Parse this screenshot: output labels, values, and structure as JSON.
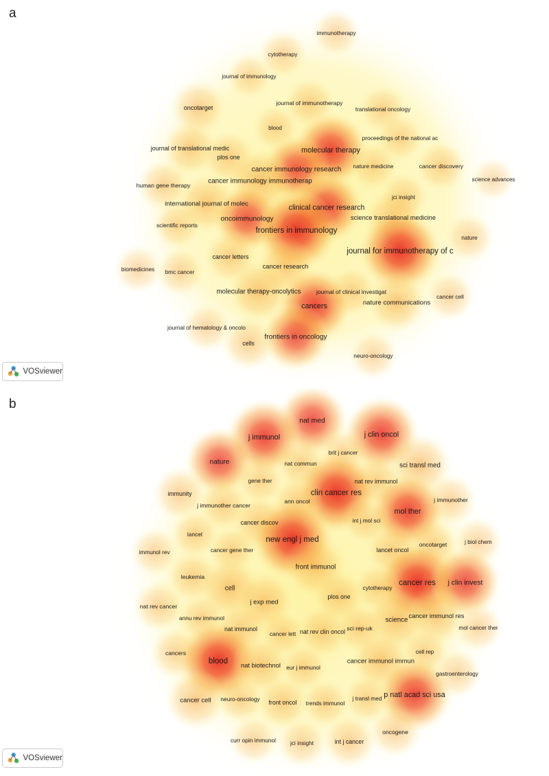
{
  "panels": [
    {
      "letter": "a"
    },
    {
      "letter": "b"
    }
  ],
  "badge": {
    "label": "VOSviewer",
    "icon": "vosviewer-logo-icon"
  },
  "colors": {
    "hot": "#e8221c",
    "mid": "#f7a13a",
    "cool": "#fdf3a0",
    "text": "#1a1a1a"
  },
  "chart_data": [
    {
      "type": "heatmap",
      "subtype": "density-visualization",
      "title": "",
      "items": [
        {
          "label": "immunotherapy",
          "weight": 0.3
        },
        {
          "label": "cytotherapy",
          "weight": 0.3
        },
        {
          "label": "journal of immunology",
          "weight": 0.25
        },
        {
          "label": "oncotarget",
          "weight": 0.45
        },
        {
          "label": "journal of immunotherapy",
          "weight": 0.35
        },
        {
          "label": "translational oncology",
          "weight": 0.3
        },
        {
          "label": "blood",
          "weight": 0.25
        },
        {
          "label": "proceedings of the national ac",
          "weight": 0.3
        },
        {
          "label": "journal of translational medic",
          "weight": 0.45
        },
        {
          "label": "molecular therapy",
          "weight": 0.85
        },
        {
          "label": "plos one",
          "weight": 0.4
        },
        {
          "label": "cancer immunology research",
          "weight": 0.7
        },
        {
          "label": "nature medicine",
          "weight": 0.3
        },
        {
          "label": "cancer discovery",
          "weight": 0.35
        },
        {
          "label": "science advances",
          "weight": 0.2
        },
        {
          "label": "human gene therapy",
          "weight": 0.35
        },
        {
          "label": "cancer immunology immunotherap",
          "weight": 0.65
        },
        {
          "label": "jci insight",
          "weight": 0.3
        },
        {
          "label": "international journal of molec",
          "weight": 0.55
        },
        {
          "label": "clinical cancer research",
          "weight": 0.8
        },
        {
          "label": "oncoimmunology",
          "weight": 0.7
        },
        {
          "label": "science translational medicine",
          "weight": 0.5
        },
        {
          "label": "scientific reports",
          "weight": 0.3
        },
        {
          "label": "frontiers in immunology",
          "weight": 1.0
        },
        {
          "label": "nature",
          "weight": 0.3
        },
        {
          "label": "journal for immunotherapy of c",
          "weight": 1.0
        },
        {
          "label": "cancer letters",
          "weight": 0.4
        },
        {
          "label": "cancer research",
          "weight": 0.5
        },
        {
          "label": "biomedicines",
          "weight": 0.3
        },
        {
          "label": "bmc cancer",
          "weight": 0.3
        },
        {
          "label": "molecular therapy-oncolytics",
          "weight": 0.6
        },
        {
          "label": "journal of clinical investigat",
          "weight": 0.35
        },
        {
          "label": "cancers",
          "weight": 0.85
        },
        {
          "label": "nature communications",
          "weight": 0.55
        },
        {
          "label": "cancer cell",
          "weight": 0.3
        },
        {
          "label": "journal of hematology & oncolo",
          "weight": 0.3
        },
        {
          "label": "frontiers in oncology",
          "weight": 0.7
        },
        {
          "label": "cells",
          "weight": 0.4
        },
        {
          "label": "neuro-oncology",
          "weight": 0.3
        }
      ]
    },
    {
      "type": "heatmap",
      "subtype": "density-visualization",
      "title": "",
      "items": [
        {
          "label": "nat med",
          "weight": 0.75
        },
        {
          "label": "j immunol",
          "weight": 0.85
        },
        {
          "label": "j clin oncol",
          "weight": 0.85
        },
        {
          "label": "brit j cancer",
          "weight": 0.3
        },
        {
          "label": "nature",
          "weight": 0.7
        },
        {
          "label": "nat commun",
          "weight": 0.35
        },
        {
          "label": "sci transl med",
          "weight": 0.6
        },
        {
          "label": "gene ther",
          "weight": 0.3
        },
        {
          "label": "nat rev immunol",
          "weight": 0.4
        },
        {
          "label": "immunity",
          "weight": 0.4
        },
        {
          "label": "clin cancer res",
          "weight": 1.0
        },
        {
          "label": "ann oncol",
          "weight": 0.35
        },
        {
          "label": "j immunother",
          "weight": 0.35
        },
        {
          "label": "j immunother cancer",
          "weight": 0.35
        },
        {
          "label": "mol ther",
          "weight": 0.85
        },
        {
          "label": "cancer discov",
          "weight": 0.45
        },
        {
          "label": "int j mol sci",
          "weight": 0.3
        },
        {
          "label": "lancet",
          "weight": 0.3
        },
        {
          "label": "new engl j med",
          "weight": 1.0
        },
        {
          "label": "oncotarget",
          "weight": 0.35
        },
        {
          "label": "j biol chem",
          "weight": 0.3
        },
        {
          "label": "immunol rev",
          "weight": 0.3
        },
        {
          "label": "cancer gene ther",
          "weight": 0.3
        },
        {
          "label": "lancet oncol",
          "weight": 0.4
        },
        {
          "label": "front immunol",
          "weight": 0.6
        },
        {
          "label": "leukemia",
          "weight": 0.35
        },
        {
          "label": "cancer res",
          "weight": 1.0
        },
        {
          "label": "j clin invest",
          "weight": 0.75
        },
        {
          "label": "cell",
          "weight": 0.6
        },
        {
          "label": "cytotherapy",
          "weight": 0.3
        },
        {
          "label": "plos one",
          "weight": 0.4
        },
        {
          "label": "j exp med",
          "weight": 0.55
        },
        {
          "label": "nat rev cancer",
          "weight": 0.35
        },
        {
          "label": "science",
          "weight": 0.6
        },
        {
          "label": "cancer immunol res",
          "weight": 0.5
        },
        {
          "label": "annu rev immunol",
          "weight": 0.3
        },
        {
          "label": "mol cancer ther",
          "weight": 0.3
        },
        {
          "label": "nat immunol",
          "weight": 0.4
        },
        {
          "label": "cancer lett",
          "weight": 0.3
        },
        {
          "label": "nat rev clin oncol",
          "weight": 0.4
        },
        {
          "label": "sci rep-uk",
          "weight": 0.35
        },
        {
          "label": "cell rep",
          "weight": 0.3
        },
        {
          "label": "cancers",
          "weight": 0.35
        },
        {
          "label": "blood",
          "weight": 1.0
        },
        {
          "label": "nat biotechnol",
          "weight": 0.5
        },
        {
          "label": "eur j immunol",
          "weight": 0.3
        },
        {
          "label": "cancer immunol immun",
          "weight": 0.55
        },
        {
          "label": "gastroenterology",
          "weight": 0.3
        },
        {
          "label": "p natl acad sci usa",
          "weight": 0.85
        },
        {
          "label": "cancer cell",
          "weight": 0.55
        },
        {
          "label": "neuro-oncology",
          "weight": 0.3
        },
        {
          "label": "front oncol",
          "weight": 0.4
        },
        {
          "label": "trends immunol",
          "weight": 0.3
        },
        {
          "label": "j transl med",
          "weight": 0.3
        },
        {
          "label": "oncogene",
          "weight": 0.35
        },
        {
          "label": "curr opin immunol",
          "weight": 0.3
        },
        {
          "label": "jci insight",
          "weight": 0.3
        },
        {
          "label": "int j cancer",
          "weight": 0.4
        }
      ]
    }
  ]
}
